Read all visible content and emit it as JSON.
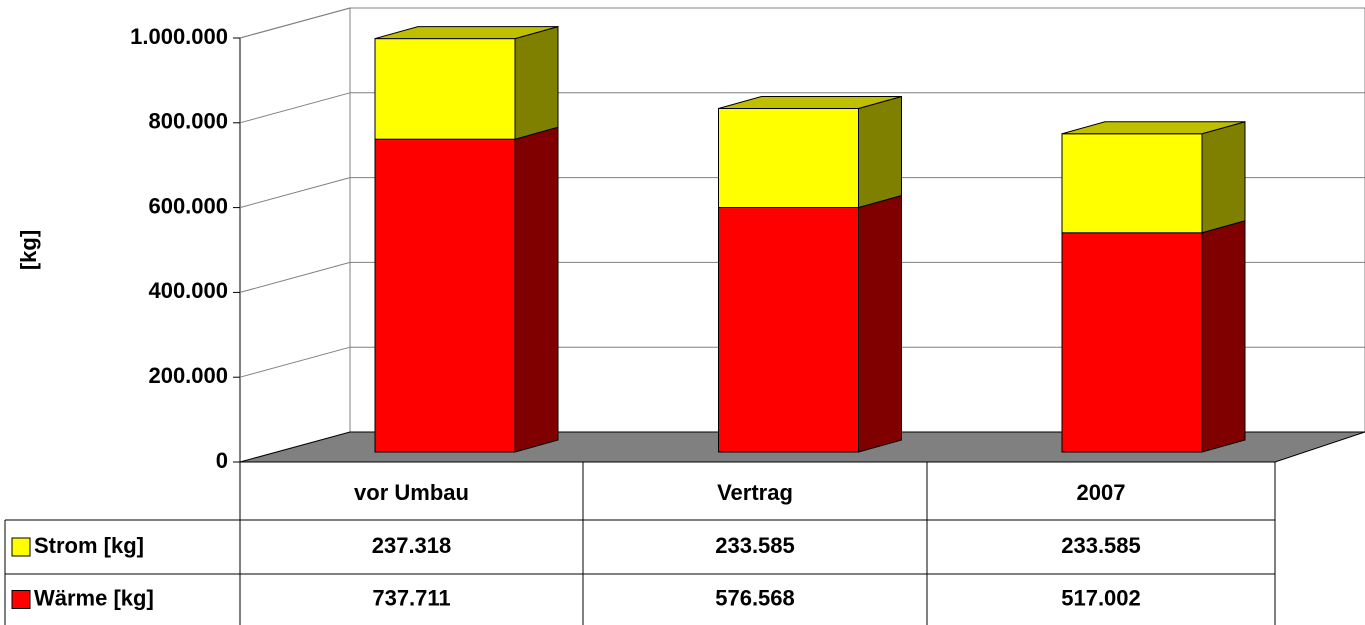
{
  "chart_data": {
    "type": "bar",
    "stacked": true,
    "y_label": "[kg]",
    "categories": [
      "vor Umbau",
      "Vertrag",
      "2007"
    ],
    "series": [
      {
        "name": "Wärme [kg]",
        "color": "#ff0000",
        "values": [
          737711,
          576568,
          517002
        ],
        "value_labels": [
          "737.711",
          "576.568",
          "517.002"
        ]
      },
      {
        "name": "Strom [kg]",
        "color": "#ffff00",
        "values": [
          237318,
          233585,
          233585
        ],
        "value_labels": [
          "237.318",
          "233.585",
          "233.585"
        ]
      }
    ],
    "ylim": [
      0,
      1000000
    ],
    "yticks": [
      0,
      {
        "value": 200000,
        "label": "200.000"
      },
      {
        "value": 400000,
        "label": "400.000"
      },
      {
        "value": 600000,
        "label": "600.000"
      },
      {
        "value": 800000,
        "label": "800.000"
      },
      {
        "value": 1000000,
        "label": "1.000.000"
      }
    ],
    "grid": true
  }
}
